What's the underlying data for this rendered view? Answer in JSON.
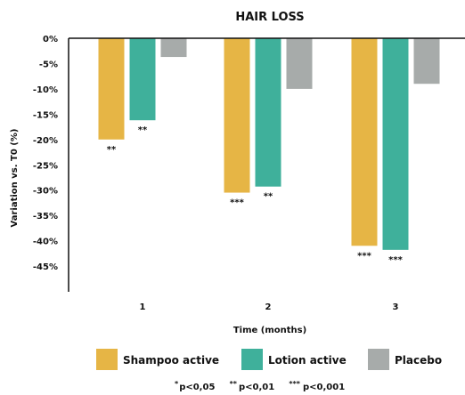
{
  "chart_data": {
    "type": "bar",
    "title": "HAIR LOSS",
    "xlabel": "Time (months)",
    "ylabel": "Variation vs. T0 (%)",
    "categories": [
      "1",
      "2",
      "3"
    ],
    "ylim": [
      -50,
      0
    ],
    "yticks": [
      0,
      -5,
      -10,
      -15,
      -20,
      -25,
      -30,
      -35,
      -40,
      -45
    ],
    "ytick_labels": [
      "0%",
      "-5%",
      "-10%",
      "-15%",
      "-20%",
      "-25%",
      "-30%",
      "-35%",
      "-40%",
      "-45%"
    ],
    "series": [
      {
        "name": "Shampoo active",
        "color": "#E6B545",
        "values": [
          -20,
          -30.5,
          -41
        ],
        "significance": [
          "**",
          "***",
          "***"
        ]
      },
      {
        "name": "Lotion active",
        "color": "#3FB09B",
        "values": [
          -16.2,
          -29.3,
          -41.8
        ],
        "significance": [
          "**",
          "**",
          "***"
        ]
      },
      {
        "name": "Placebo",
        "color": "#A7ABAA",
        "values": [
          -3.7,
          -10,
          -9
        ],
        "significance": [
          "",
          "",
          ""
        ]
      }
    ],
    "legend_position": "bottom",
    "footnotes": [
      {
        "stars": "*",
        "text": "p<0,05"
      },
      {
        "stars": "**",
        "text": "p<0,01"
      },
      {
        "stars": "***",
        "text": "p<0,001"
      }
    ]
  }
}
